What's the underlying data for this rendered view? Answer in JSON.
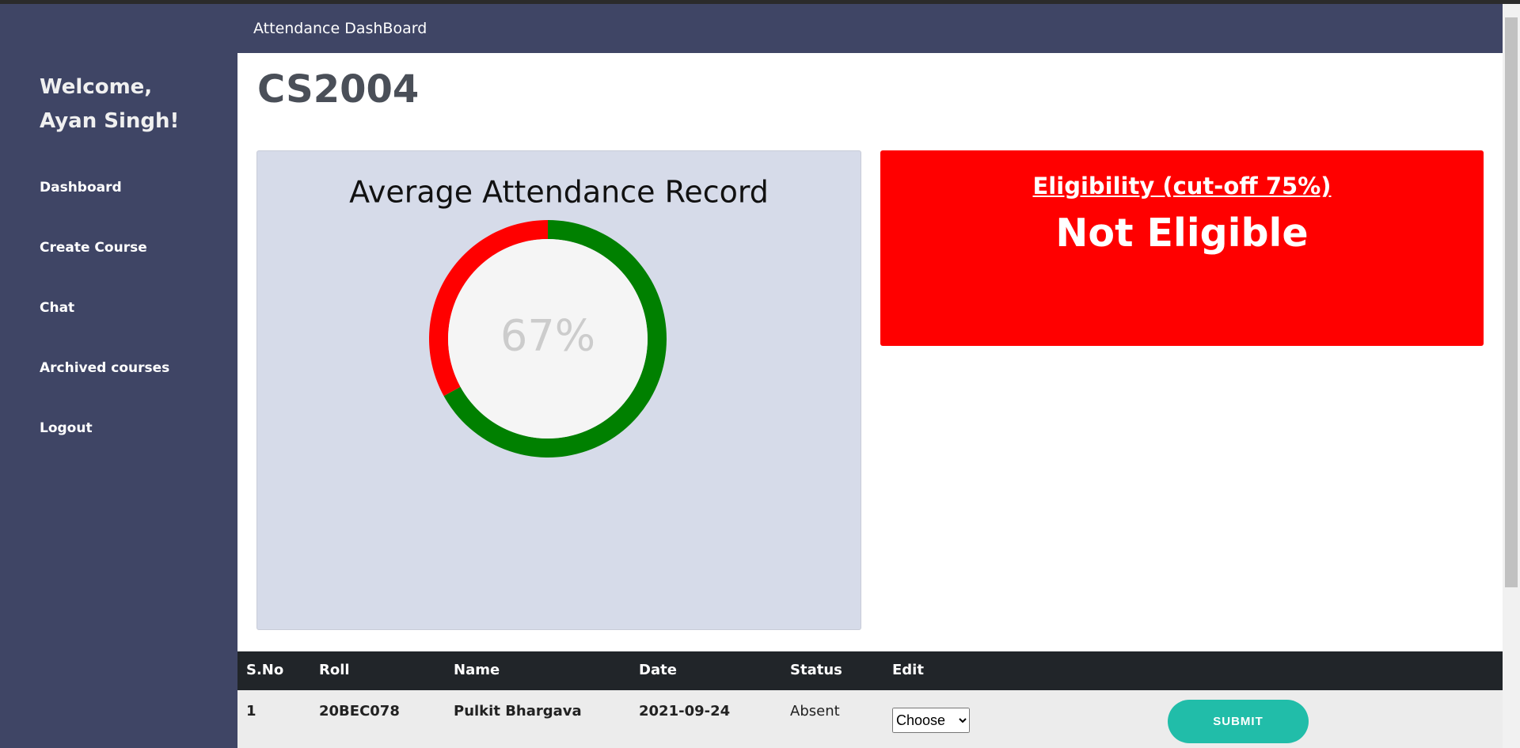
{
  "sidebar": {
    "welcome": "Welcome,",
    "user": "Ayan Singh!",
    "nav": [
      "Dashboard",
      "Create Course",
      "Chat",
      "Archived courses",
      "Logout"
    ]
  },
  "header": {
    "title": "Attendance DashBoard"
  },
  "course": "CS2004",
  "attendance_card": {
    "title": "Average Attendance Record",
    "attendance": {
      "value": 67,
      "label": "67%"
    },
    "present_color": "#008000",
    "absent_color": "#ff0000"
  },
  "eligibility_card": {
    "title": "Eligibility (cut-off 75%)",
    "status": "Not Eligible"
  },
  "table": {
    "headers": [
      "S.No",
      "Roll",
      "Name",
      "Date",
      "Status",
      "Edit"
    ],
    "rows": [
      [
        "1",
        "20BEC078",
        "Pulkit Bhargava",
        "2021-09-24",
        "Absent"
      ]
    ],
    "select": "Choose",
    "button": "SUBMIT"
  }
}
